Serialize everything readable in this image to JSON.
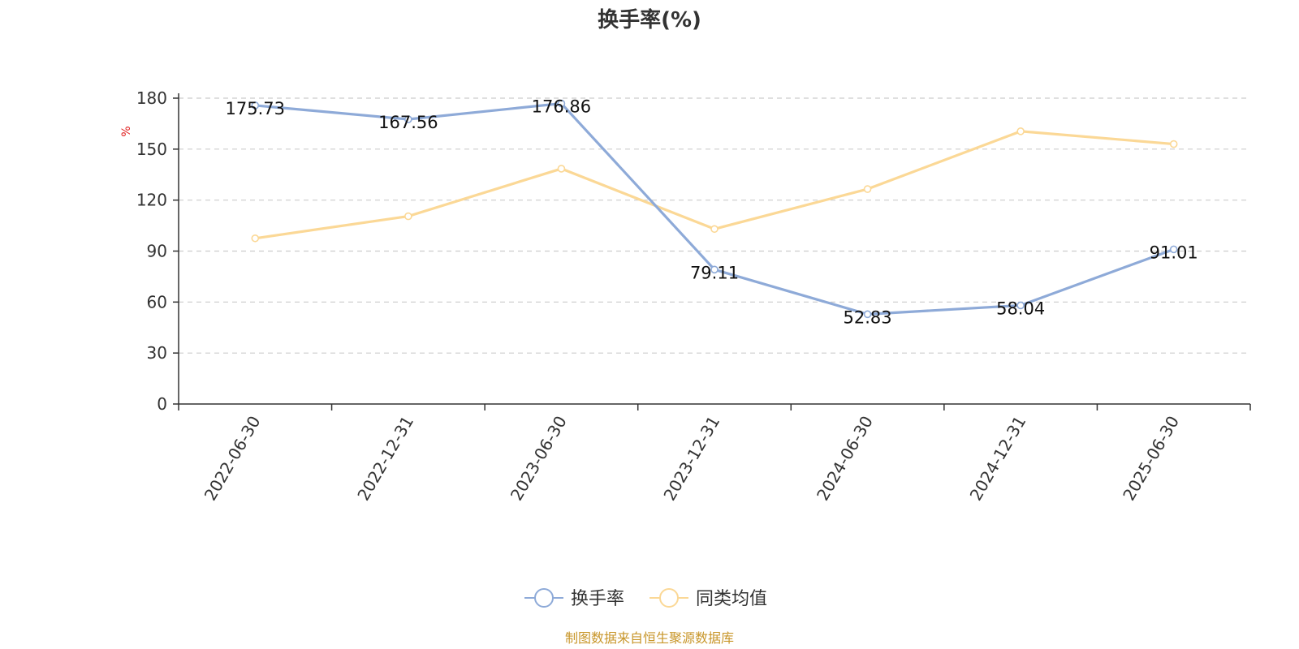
{
  "chart_data": {
    "type": "line",
    "title": "换手率(%)",
    "ylabel": "%",
    "xlabel": "",
    "ylim": [
      0,
      180
    ],
    "yticks": [
      0,
      30,
      60,
      90,
      120,
      150,
      180
    ],
    "grid": true,
    "legend_position": "bottom-center",
    "categories": [
      "2022-06-30",
      "2022-12-31",
      "2023-06-30",
      "2023-12-31",
      "2024-06-30",
      "2024-12-31",
      "2025-06-30"
    ],
    "series": [
      {
        "name": "换手率",
        "color": "#8eaad8",
        "values": [
          175.73,
          167.56,
          176.86,
          79.11,
          52.83,
          58.04,
          91.01
        ],
        "data_labels": [
          "175.73",
          "167.56",
          "176.86",
          "79.11",
          "52.83",
          "58.04",
          "91.01"
        ]
      },
      {
        "name": "同类均值",
        "color": "#fbd896",
        "values": [
          97.5,
          110.5,
          138.5,
          103,
          126.5,
          160.5,
          153
        ]
      }
    ],
    "footer": "制图数据来自恒生聚源数据库"
  }
}
